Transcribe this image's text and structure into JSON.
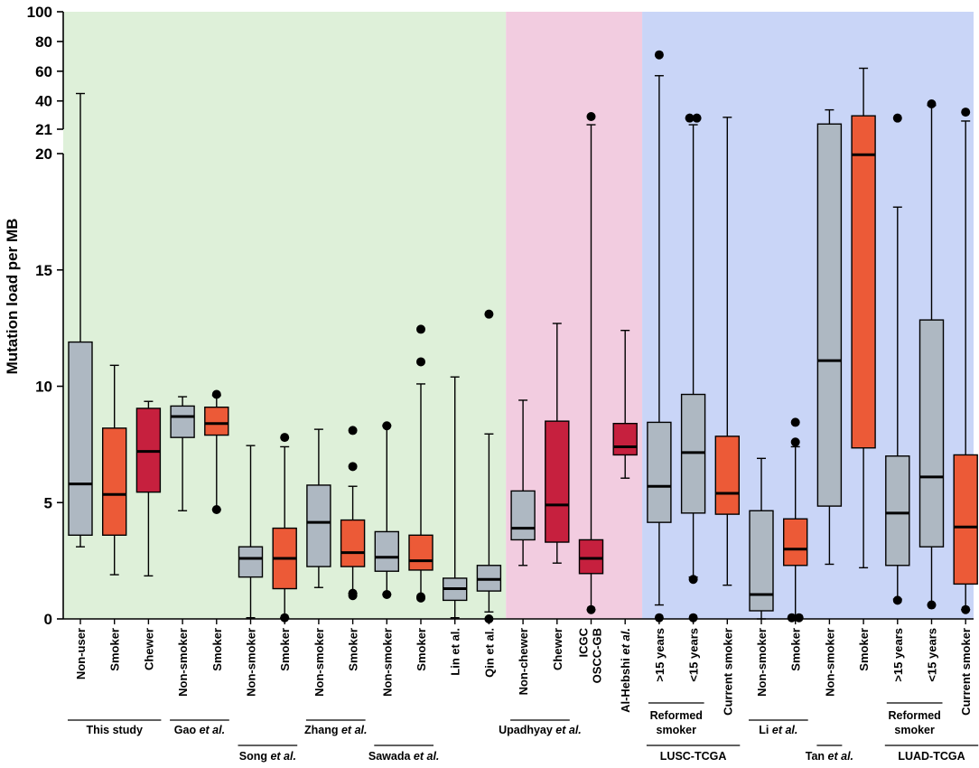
{
  "chart_data": {
    "type": "box",
    "title": "",
    "xlabel": "",
    "ylabel": "Mutation load per MB",
    "y_axis": {
      "broken": true,
      "lower_range": [
        0,
        20
      ],
      "upper_range": [
        21,
        100
      ],
      "lower_ticks": [
        "0",
        "5",
        "10",
        "15",
        "20"
      ],
      "upper_ticks": [
        "21",
        "40",
        "60",
        "80",
        "100"
      ]
    },
    "colors": {
      "non_smoker": "#aeb8c2",
      "smoker": "#ec5a37",
      "chewer": "#c6203e",
      "panel_green": "#def0d9",
      "panel_pink": "#f2cce0",
      "panel_blue": "#c9d5f7"
    },
    "panels": [
      {
        "name": "green",
        "color": "#def0d9",
        "from_box": 0,
        "to_box": 12
      },
      {
        "name": "pink",
        "color": "#f2cce0",
        "from_box": 13,
        "to_box": 16
      },
      {
        "name": "blue",
        "color": "#c9d5f7",
        "from_box": 17,
        "to_box": 26
      }
    ],
    "boxes": [
      {
        "label": "Non-user",
        "color": "#aeb8c2",
        "q1": 3.6,
        "median": 5.8,
        "q3": 11.9,
        "wlo": 3.1,
        "whi": 45,
        "outliers": []
      },
      {
        "label": "Smoker",
        "color": "#ec5a37",
        "q1": 3.6,
        "median": 5.35,
        "q3": 8.2,
        "wlo": 1.9,
        "whi": 10.9,
        "outliers": []
      },
      {
        "label": "Chewer",
        "color": "#c6203e",
        "q1": 5.45,
        "median": 7.2,
        "q3": 9.05,
        "wlo": 1.85,
        "whi": 9.35,
        "outliers": []
      },
      {
        "label": "Non-smoker",
        "color": "#aeb8c2",
        "q1": 7.8,
        "median": 8.7,
        "q3": 9.15,
        "wlo": 4.65,
        "whi": 9.55,
        "outliers": []
      },
      {
        "label": "Smoker",
        "color": "#ec5a37",
        "q1": 7.9,
        "median": 8.4,
        "q3": 9.1,
        "wlo": 4.7,
        "whi": 9.6,
        "outliers": [
          9.65,
          4.7
        ]
      },
      {
        "label": "Non-smoker",
        "color": "#aeb8c2",
        "q1": 1.8,
        "median": 2.6,
        "q3": 3.1,
        "wlo": 0.05,
        "whi": 7.45,
        "outliers": []
      },
      {
        "label": "Smoker",
        "color": "#ec5a37",
        "q1": 1.3,
        "median": 2.6,
        "q3": 3.9,
        "wlo": 0.05,
        "whi": 7.4,
        "outliers": [
          7.8,
          0.05
        ]
      },
      {
        "label": "Non-smoker",
        "color": "#aeb8c2",
        "q1": 2.25,
        "median": 4.15,
        "q3": 5.75,
        "wlo": 1.35,
        "whi": 8.15,
        "outliers": []
      },
      {
        "label": "Smoker",
        "color": "#ec5a37",
        "q1": 2.25,
        "median": 2.85,
        "q3": 4.25,
        "wlo": 1.1,
        "whi": 5.7,
        "outliers": [
          8.1,
          6.55,
          1.0,
          1.1
        ]
      },
      {
        "label": "Non-smoker",
        "color": "#aeb8c2",
        "q1": 2.05,
        "median": 2.65,
        "q3": 3.75,
        "wlo": 1.05,
        "whi": 8.3,
        "outliers": [
          8.3,
          1.05
        ]
      },
      {
        "label": "Smoker",
        "color": "#ec5a37",
        "q1": 2.1,
        "median": 2.5,
        "q3": 3.6,
        "wlo": 0.9,
        "whi": 10.1,
        "outliers": [
          12.45,
          11.05,
          0.9,
          0.95
        ]
      },
      {
        "label": "Lin et al.",
        "color": "#aeb8c2",
        "q1": 0.8,
        "median": 1.3,
        "q3": 1.75,
        "wlo": 0.05,
        "whi": 10.4,
        "outliers": []
      },
      {
        "label": "Qin et al.",
        "color": "#aeb8c2",
        "q1": 1.2,
        "median": 1.7,
        "q3": 2.3,
        "wlo": 0.3,
        "whi": 7.95,
        "outliers": [
          13.1,
          0.0
        ]
      },
      {
        "label": "Non-chewer",
        "color": "#aeb8c2",
        "q1": 3.4,
        "median": 3.9,
        "q3": 5.5,
        "wlo": 2.3,
        "whi": 9.4,
        "outliers": []
      },
      {
        "label": "Chewer",
        "color": "#c6203e",
        "q1": 3.3,
        "median": 4.9,
        "q3": 8.5,
        "wlo": 2.4,
        "whi": 12.7,
        "outliers": []
      },
      {
        "label": "ICGC OSCC-GB",
        "color": "#c6203e",
        "q1": 1.95,
        "median": 2.6,
        "q3": 3.4,
        "wlo": 0.4,
        "whi": 24,
        "outliers": [
          29.5,
          0.4
        ]
      },
      {
        "label": "Al-Hebshi et al.",
        "color": "#c6203e",
        "q1": 7.05,
        "median": 7.4,
        "q3": 8.4,
        "wlo": 6.05,
        "whi": 12.4,
        "outliers": []
      },
      {
        "label": ">15 years",
        "color": "#aeb8c2",
        "q1": 4.15,
        "median": 5.7,
        "q3": 8.45,
        "wlo": 0.6,
        "whi": 57,
        "outliers": [
          71,
          0.05
        ]
      },
      {
        "label": "<15 years",
        "color": "#aeb8c2",
        "q1": 4.55,
        "median": 7.15,
        "q3": 9.65,
        "wlo": 1.8,
        "whi": 24,
        "outliers": [
          28.5,
          28.5,
          1.7,
          0.05
        ]
      },
      {
        "label": "Current smoker",
        "color": "#ec5a37",
        "q1": 4.5,
        "median": 5.4,
        "q3": 7.85,
        "wlo": 1.45,
        "whi": 29,
        "outliers": []
      },
      {
        "label": "Non-smoker",
        "color": "#aeb8c2",
        "q1": 0.35,
        "median": 1.05,
        "q3": 4.65,
        "wlo": 0.0,
        "whi": 6.9,
        "outliers": []
      },
      {
        "label": "Smoker",
        "color": "#ec5a37",
        "q1": 2.3,
        "median": 3.0,
        "q3": 4.3,
        "wlo": 0.05,
        "whi": 7.4,
        "outliers": [
          8.45,
          7.6,
          0.05,
          0.05
        ]
      },
      {
        "label": "Non-smoker",
        "color": "#aeb8c2",
        "q1": 4.85,
        "median": 11.1,
        "q3": 24.5,
        "wlo": 2.35,
        "whi": 34,
        "outliers": []
      },
      {
        "label": "Smoker",
        "color": "#ec5a37",
        "q1": 7.35,
        "median": 19.95,
        "q3": 30,
        "wlo": 2.2,
        "whi": 62,
        "outliers": []
      },
      {
        "label": ">15 years",
        "color": "#aeb8c2",
        "q1": 2.3,
        "median": 4.55,
        "q3": 7.0,
        "wlo": 0.85,
        "whi": 17.7,
        "outliers": [
          28.5,
          0.8
        ]
      },
      {
        "label": "<15 years",
        "color": "#aeb8c2",
        "q1": 3.1,
        "median": 6.1,
        "q3": 12.85,
        "wlo": 0.6,
        "whi": 37,
        "outliers": [
          38,
          0.6
        ]
      },
      {
        "label": "Current smoker",
        "color": "#ec5a37",
        "q1": 1.5,
        "median": 3.95,
        "q3": 7.05,
        "wlo": 0.4,
        "whi": 26.5,
        "outliers": [
          32.5,
          0.4
        ]
      }
    ],
    "sublabels": [
      {
        "text1": "Reformed",
        "text2": "smoker",
        "from_box": 17,
        "to_box": 18
      },
      {
        "text1": "Reformed",
        "text2": "smoker",
        "from_box": 24,
        "to_box": 25
      }
    ],
    "groups": [
      {
        "text": "This study",
        "italic": "",
        "from_box": 0,
        "to_box": 2,
        "row": 1
      },
      {
        "text": "Gao ",
        "italic": "et al.",
        "from_box": 3,
        "to_box": 4,
        "row": 1
      },
      {
        "text": "Zhang ",
        "italic": "et al.",
        "from_box": 7,
        "to_box": 8,
        "row": 1
      },
      {
        "text": "Upadhyay ",
        "italic": "et al.",
        "from_box": 13,
        "to_box": 14,
        "row": 1
      },
      {
        "text": "Li ",
        "italic": "et al.",
        "from_box": 20,
        "to_box": 21,
        "row": 1
      },
      {
        "text": "LUSC-TCGA",
        "italic": "",
        "from_box": 17,
        "to_box": 19,
        "row": 2
      },
      {
        "text": "Song ",
        "italic": "et al.",
        "from_box": 5,
        "to_box": 6,
        "row": 2
      },
      {
        "text": "Sawada ",
        "italic": "et al.",
        "from_box": 9,
        "to_box": 10,
        "row": 2
      },
      {
        "text": "Tan ",
        "italic": "et al.",
        "from_box": 22,
        "to_box": 22,
        "row": 2
      },
      {
        "text": "LUAD-TCGA",
        "italic": "",
        "from_box": 24,
        "to_box": 26,
        "row": 2
      }
    ]
  }
}
